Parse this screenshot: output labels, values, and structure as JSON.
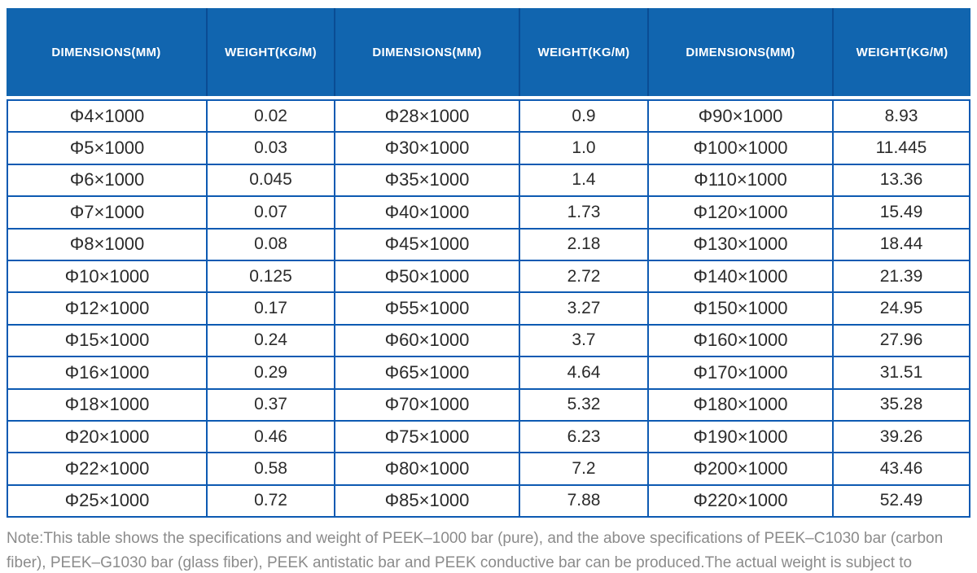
{
  "colors": {
    "header_bg": "#1165af",
    "header_divider": "#0a4c94",
    "table_border": "#0d5ab2",
    "body_text": "#2b2b2b",
    "note_text": "#8b8b8b"
  },
  "table": {
    "columns": [
      {
        "label": "DIMENSIONS(MM)"
      },
      {
        "label": "WEIGHT(KG/M)"
      },
      {
        "label": "DIMENSIONS(MM)"
      },
      {
        "label": "WEIGHT(KG/M)"
      },
      {
        "label": "DIMENSIONS(MM)"
      },
      {
        "label": "WEIGHT(KG/M)"
      }
    ],
    "rows": [
      [
        "Φ4×1000",
        "0.02",
        "Φ28×1000",
        "0.9",
        "Φ90×1000",
        "8.93"
      ],
      [
        "Φ5×1000",
        "0.03",
        "Φ30×1000",
        "1.0",
        "Φ100×1000",
        "11.445"
      ],
      [
        "Φ6×1000",
        "0.045",
        "Φ35×1000",
        "1.4",
        "Φ110×1000",
        "13.36"
      ],
      [
        "Φ7×1000",
        "0.07",
        "Φ40×1000",
        "1.73",
        "Φ120×1000",
        "15.49"
      ],
      [
        "Φ8×1000",
        "0.08",
        "Φ45×1000",
        "2.18",
        "Φ130×1000",
        "18.44"
      ],
      [
        "Φ10×1000",
        "0.125",
        "Φ50×1000",
        "2.72",
        "Φ140×1000",
        "21.39"
      ],
      [
        "Φ12×1000",
        "0.17",
        "Φ55×1000",
        "3.27",
        "Φ150×1000",
        "24.95"
      ],
      [
        "Φ15×1000",
        "0.24",
        "Φ60×1000",
        "3.7",
        "Φ160×1000",
        "27.96"
      ],
      [
        "Φ16×1000",
        "0.29",
        "Φ65×1000",
        "4.64",
        "Φ170×1000",
        "31.51"
      ],
      [
        "Φ18×1000",
        "0.37",
        "Φ70×1000",
        "5.32",
        "Φ180×1000",
        "35.28"
      ],
      [
        "Φ20×1000",
        "0.46",
        "Φ75×1000",
        "6.23",
        "Φ190×1000",
        "39.26"
      ],
      [
        "Φ22×1000",
        "0.58",
        "Φ80×1000",
        "7.2",
        "Φ200×1000",
        "43.46"
      ],
      [
        "Φ25×1000",
        "0.72",
        "Φ85×1000",
        "7.88",
        "Φ220×1000",
        "52.49"
      ]
    ]
  },
  "note": "Note:This table shows the specifications and weight of PEEK–1000 bar (pure), and the above specifications of PEEK–C1030 bar (carbon fiber), PEEK–G1030 bar (glass fiber), PEEK antistatic bar and PEEK conductive bar can be produced.The actual weight is subject to weighting."
}
